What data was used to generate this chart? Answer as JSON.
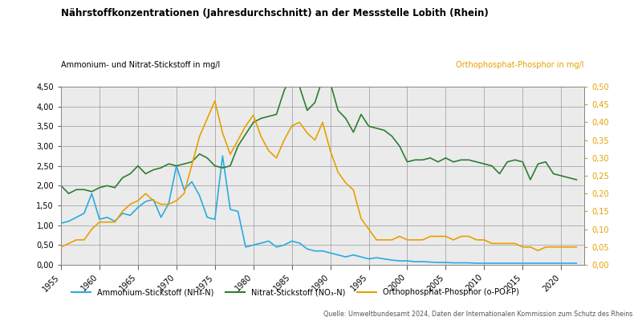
{
  "title": "Nährstoffkonzentrationen (Jahresdurchschnitt) an der Messstelle Lobith (Rhein)",
  "ylabel_left": "Ammonium- und Nitrat-Stickstoff in mg/l",
  "ylabel_right": "Orthophosphat-Phosphor in mg/l",
  "source": "Quelle: Umweltbundesamt 2024, Daten der Internationalen Kommission zum Schutz des Rheins",
  "legend": [
    "Ammonium-Stickstoff (NH₄-N)",
    "Nitrat-Stickstoff (NO₃-N)",
    "Orthophosphat-Phosphor (o-PO₄-P)"
  ],
  "colors": {
    "ammonium": "#29ABE2",
    "nitrate": "#2D7D32",
    "phosphor": "#E8A000"
  },
  "ylim_left": [
    0.0,
    4.5
  ],
  "ylim_right": [
    0.0,
    0.5
  ],
  "yticks_left": [
    0.0,
    0.5,
    1.0,
    1.5,
    2.0,
    2.5,
    3.0,
    3.5,
    4.0,
    4.5
  ],
  "yticks_right": [
    0.0,
    0.05,
    0.1,
    0.15,
    0.2,
    0.25,
    0.3,
    0.35,
    0.4,
    0.45,
    0.5
  ],
  "xlim": [
    1955,
    2023
  ],
  "xticks": [
    1955,
    1960,
    1965,
    1970,
    1975,
    1980,
    1985,
    1990,
    1995,
    2000,
    2005,
    2010,
    2015,
    2020
  ],
  "ammonium_x": [
    1955,
    1956,
    1957,
    1958,
    1959,
    1960,
    1961,
    1962,
    1963,
    1964,
    1965,
    1966,
    1967,
    1968,
    1969,
    1970,
    1971,
    1972,
    1973,
    1974,
    1975,
    1976,
    1977,
    1978,
    1979,
    1980,
    1981,
    1982,
    1983,
    1984,
    1985,
    1986,
    1987,
    1988,
    1989,
    1990,
    1991,
    1992,
    1993,
    1994,
    1995,
    1996,
    1997,
    1998,
    1999,
    2000,
    2001,
    2002,
    2003,
    2004,
    2005,
    2006,
    2007,
    2008,
    2009,
    2010,
    2011,
    2012,
    2013,
    2014,
    2015,
    2016,
    2017,
    2018,
    2019,
    2020,
    2021,
    2022
  ],
  "ammonium_y": [
    1.05,
    1.1,
    1.2,
    1.3,
    1.8,
    1.15,
    1.2,
    1.1,
    1.3,
    1.25,
    1.45,
    1.6,
    1.65,
    1.2,
    1.55,
    2.5,
    1.9,
    2.1,
    1.75,
    1.2,
    1.15,
    2.75,
    1.4,
    1.35,
    0.45,
    0.5,
    0.55,
    0.6,
    0.45,
    0.5,
    0.6,
    0.55,
    0.4,
    0.35,
    0.35,
    0.3,
    0.25,
    0.2,
    0.25,
    0.2,
    0.15,
    0.18,
    0.15,
    0.12,
    0.1,
    0.1,
    0.08,
    0.08,
    0.07,
    0.06,
    0.06,
    0.05,
    0.05,
    0.05,
    0.04,
    0.04,
    0.04,
    0.04,
    0.04,
    0.04,
    0.04,
    0.04,
    0.04,
    0.04,
    0.04,
    0.04,
    0.04,
    0.04
  ],
  "nitrate_x": [
    1955,
    1956,
    1957,
    1958,
    1959,
    1960,
    1961,
    1962,
    1963,
    1964,
    1965,
    1966,
    1967,
    1968,
    1969,
    1970,
    1971,
    1972,
    1973,
    1974,
    1975,
    1976,
    1977,
    1978,
    1979,
    1980,
    1981,
    1982,
    1983,
    1984,
    1985,
    1986,
    1987,
    1988,
    1989,
    1990,
    1991,
    1992,
    1993,
    1994,
    1995,
    1996,
    1997,
    1998,
    1999,
    2000,
    2001,
    2002,
    2003,
    2004,
    2005,
    2006,
    2007,
    2008,
    2009,
    2010,
    2011,
    2012,
    2013,
    2014,
    2015,
    2016,
    2017,
    2018,
    2019,
    2020,
    2021,
    2022
  ],
  "nitrate_y": [
    2.0,
    1.8,
    1.9,
    1.9,
    1.85,
    1.95,
    2.0,
    1.95,
    2.2,
    2.3,
    2.5,
    2.3,
    2.4,
    2.45,
    2.55,
    2.5,
    2.55,
    2.6,
    2.8,
    2.7,
    2.5,
    2.45,
    2.5,
    3.0,
    3.3,
    3.6,
    3.7,
    3.75,
    3.8,
    4.4,
    4.8,
    4.5,
    3.9,
    4.1,
    4.7,
    4.6,
    3.9,
    3.7,
    3.35,
    3.8,
    3.5,
    3.45,
    3.4,
    3.25,
    3.0,
    2.6,
    2.65,
    2.65,
    2.7,
    2.6,
    2.7,
    2.6,
    2.65,
    2.65,
    2.6,
    2.55,
    2.5,
    2.3,
    2.6,
    2.65,
    2.6,
    2.15,
    2.55,
    2.6,
    2.3,
    2.25,
    2.2,
    2.15
  ],
  "phosphor_x": [
    1955,
    1956,
    1957,
    1958,
    1959,
    1960,
    1961,
    1962,
    1963,
    1964,
    1965,
    1966,
    1967,
    1968,
    1969,
    1970,
    1971,
    1972,
    1973,
    1974,
    1975,
    1976,
    1977,
    1978,
    1979,
    1980,
    1981,
    1982,
    1983,
    1984,
    1985,
    1986,
    1987,
    1988,
    1989,
    1990,
    1991,
    1992,
    1993,
    1994,
    1995,
    1996,
    1997,
    1998,
    1999,
    2000,
    2001,
    2002,
    2003,
    2004,
    2005,
    2006,
    2007,
    2008,
    2009,
    2010,
    2011,
    2012,
    2013,
    2014,
    2015,
    2016,
    2017,
    2018,
    2019,
    2020,
    2021,
    2022
  ],
  "phosphor_y": [
    0.05,
    0.06,
    0.07,
    0.07,
    0.1,
    0.12,
    0.12,
    0.12,
    0.15,
    0.17,
    0.18,
    0.2,
    0.18,
    0.17,
    0.17,
    0.18,
    0.2,
    0.28,
    0.36,
    0.41,
    0.46,
    0.37,
    0.31,
    0.35,
    0.39,
    0.42,
    0.36,
    0.32,
    0.3,
    0.35,
    0.39,
    0.4,
    0.37,
    0.35,
    0.4,
    0.32,
    0.26,
    0.23,
    0.21,
    0.13,
    0.1,
    0.07,
    0.07,
    0.07,
    0.08,
    0.07,
    0.07,
    0.07,
    0.08,
    0.08,
    0.08,
    0.07,
    0.08,
    0.08,
    0.07,
    0.07,
    0.06,
    0.06,
    0.06,
    0.06,
    0.05,
    0.05,
    0.04,
    0.05,
    0.05,
    0.05,
    0.05,
    0.05
  ],
  "background_color": "#EBEBEB",
  "title_color": "#000000",
  "right_label_color": "#E8A000",
  "left_label_color": "#000000"
}
